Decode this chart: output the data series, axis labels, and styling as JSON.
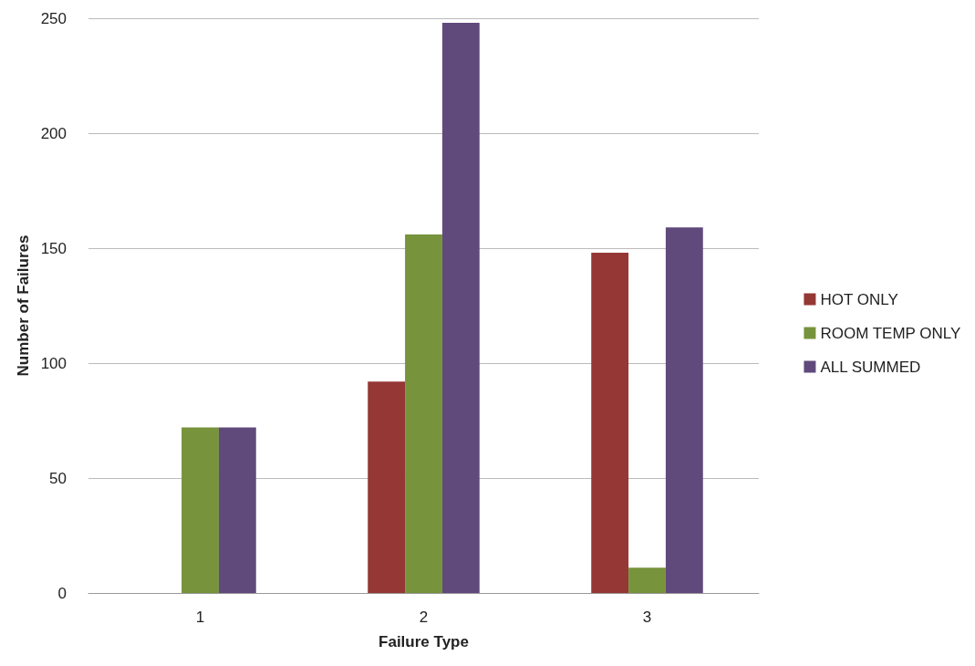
{
  "chart_data": {
    "type": "bar",
    "xlabel": "Failure Type",
    "ylabel": "Number of Failures",
    "categories": [
      "1",
      "2",
      "3"
    ],
    "series": [
      {
        "name": "HOT ONLY",
        "color": "#953735",
        "values": [
          0,
          92,
          148
        ]
      },
      {
        "name": "ROOM TEMP ONLY",
        "color": "#77933c",
        "values": [
          72,
          156,
          11
        ]
      },
      {
        "name": "ALL SUMMED",
        "color": "#604a7b",
        "values": [
          72,
          248,
          159
        ]
      }
    ],
    "ylim": [
      0,
      250
    ],
    "yticks": [
      0,
      50,
      100,
      150,
      200,
      250
    ],
    "grid": "y",
    "legend": "right"
  }
}
